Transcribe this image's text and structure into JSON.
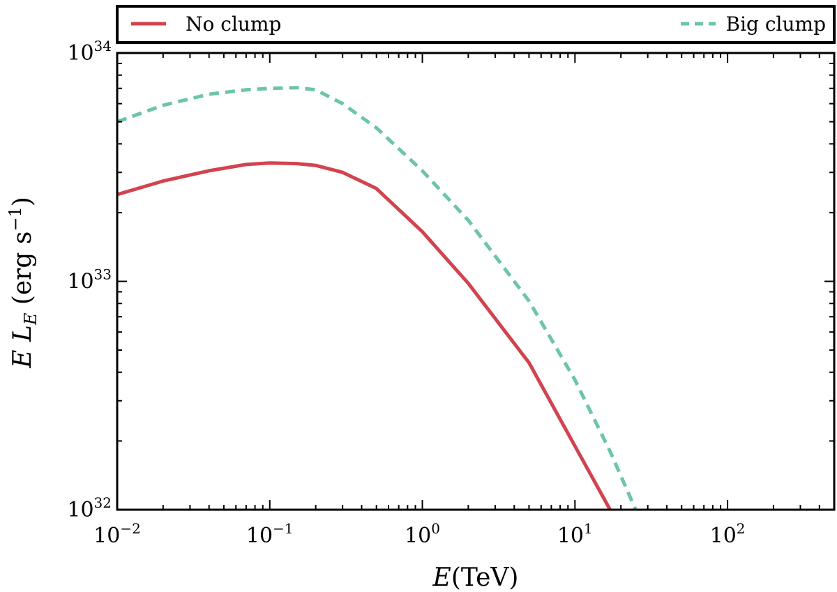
{
  "chart_data": {
    "type": "line",
    "title": "",
    "xlabel": {
      "italic": "E",
      "rest": "(TeV)"
    },
    "ylabel": {
      "text": "E L_E (erg s^-1)"
    },
    "xscale": "log",
    "yscale": "log",
    "xlim": [
      0.01,
      500
    ],
    "ylim": [
      1e+32,
      1e+34
    ],
    "x_ticks": [
      {
        "base": "10",
        "exp": "−2"
      },
      {
        "base": "10",
        "exp": "−1"
      },
      {
        "base": "10",
        "exp": "0"
      },
      {
        "base": "10",
        "exp": "1"
      },
      {
        "base": "10",
        "exp": "2"
      }
    ],
    "y_ticks": [
      {
        "base": "10",
        "exp": "32"
      },
      {
        "base": "10",
        "exp": "33"
      },
      {
        "base": "10",
        "exp": "34"
      }
    ],
    "grid": false,
    "legend": {
      "placement": "top, above plot, full width"
    },
    "series": [
      {
        "name": "No clump",
        "color": "#d1444f",
        "style": "solid",
        "x": [
          0.01,
          0.02,
          0.04,
          0.07,
          0.1,
          0.15,
          0.2,
          0.3,
          0.5,
          1,
          2,
          5,
          10,
          17
        ],
        "y": [
          2.4e+33,
          2.75e+33,
          3.05e+33,
          3.25e+33,
          3.3e+33,
          3.28e+33,
          3.22e+33,
          3e+33,
          2.55e+33,
          1.65e+33,
          9.8e+32,
          4.4e+32,
          1.9e+32,
          1e+32
        ]
      },
      {
        "name": "Big clump",
        "color": "#6cc5a6",
        "style": "dashed",
        "x": [
          0.01,
          0.02,
          0.04,
          0.07,
          0.1,
          0.15,
          0.2,
          0.3,
          0.5,
          1,
          2,
          5,
          10,
          17,
          25
        ],
        "y": [
          5e+33,
          5.9e+33,
          6.6e+33,
          6.9e+33,
          7e+33,
          7.05e+33,
          6.9e+33,
          6e+33,
          4.7e+33,
          3.05e+33,
          1.85e+33,
          8.2e+32,
          3.7e+32,
          1.8e+32,
          1e+32
        ]
      }
    ]
  }
}
